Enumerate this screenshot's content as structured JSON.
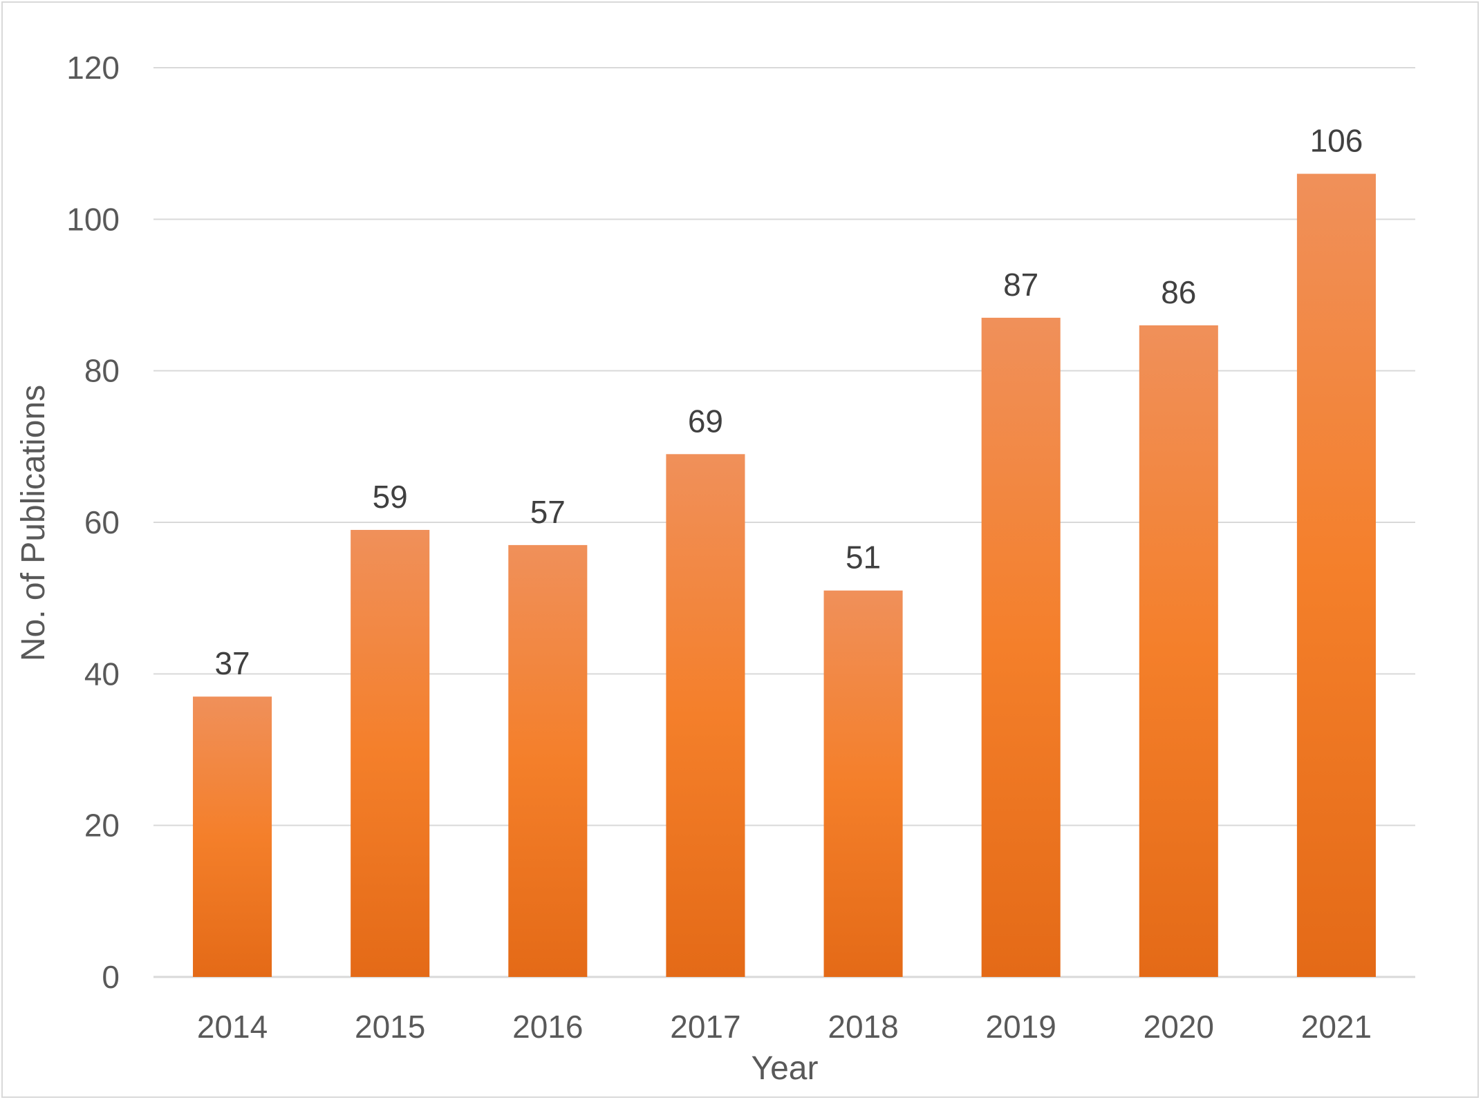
{
  "chart_data": {
    "type": "bar",
    "title": "",
    "xlabel": "Year",
    "ylabel": "No. of Publications",
    "categories": [
      "2014",
      "2015",
      "2016",
      "2017",
      "2018",
      "2019",
      "2020",
      "2021"
    ],
    "values": [
      37,
      59,
      57,
      69,
      51,
      87,
      86,
      106
    ],
    "data_labels": [
      "37",
      "59",
      "57",
      "69",
      "51",
      "87",
      "86",
      "106"
    ],
    "ylim": [
      0,
      120
    ],
    "yticks": [
      0,
      20,
      40,
      60,
      80,
      100,
      120
    ],
    "ytick_labels": [
      "0",
      "20",
      "40",
      "60",
      "80",
      "100",
      "120"
    ],
    "grid": true,
    "legend": "none",
    "colors": {
      "bar_top": "#f0905a",
      "bar_mid": "#f47f2a",
      "bar_bottom": "#e46a17",
      "grid": "#d9d9d9",
      "axis": "#d9d9d9",
      "text": "#595959",
      "label_text": "#404040"
    }
  }
}
